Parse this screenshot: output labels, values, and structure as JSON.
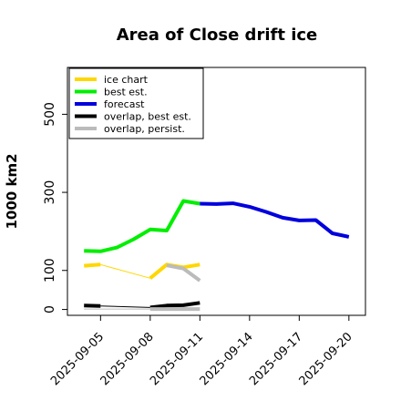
{
  "chart_data": {
    "type": "line",
    "title": "Area of Close drift ice",
    "ylabel": "1000 km2",
    "xlabel": "",
    "ylim": [
      -15,
      620
    ],
    "xlim": [
      "2025-09-03",
      "2025-09-21"
    ],
    "yticks": [
      0,
      100,
      300,
      500
    ],
    "xticks": [
      {
        "label": "2025-09-05",
        "date": "2025-09-05",
        "color": "#000000"
      },
      {
        "label": "2025-09-08",
        "date": "2025-09-08",
        "color": "#000000"
      },
      {
        "label": "2025-09-11",
        "date": "2025-09-11",
        "color": "#2e8b2e"
      },
      {
        "label": "2025-09-14",
        "date": "2025-09-14",
        "color": "#000000"
      },
      {
        "label": "2025-09-17",
        "date": "2025-09-17",
        "color": "#000000"
      },
      {
        "label": "2025-09-20",
        "date": "2025-09-20",
        "color": "#000000"
      }
    ],
    "grid": false,
    "legend": "top-left",
    "series": [
      {
        "name": "ice chart",
        "color": "#ffd700",
        "segments": [
          {
            "width": "thick",
            "points": [
              [
                "2025-09-04",
                112
              ],
              [
                "2025-09-05",
                115
              ]
            ]
          },
          {
            "width": "thin",
            "points": [
              [
                "2025-09-05",
                115
              ],
              [
                "2025-09-08",
                80
              ]
            ]
          },
          {
            "width": "thick",
            "points": [
              [
                "2025-09-08",
                80
              ],
              [
                "2025-09-09",
                115
              ],
              [
                "2025-09-10",
                108
              ],
              [
                "2025-09-11",
                115
              ]
            ]
          }
        ]
      },
      {
        "name": "best est.",
        "color": "#00ee00",
        "segments": [
          {
            "width": "thick",
            "points": [
              [
                "2025-09-04",
                150
              ],
              [
                "2025-09-05",
                149
              ],
              [
                "2025-09-06",
                159
              ],
              [
                "2025-09-07",
                180
              ],
              [
                "2025-09-08",
                205
              ],
              [
                "2025-09-09",
                202
              ],
              [
                "2025-09-10",
                278
              ],
              [
                "2025-09-11",
                271
              ]
            ]
          }
        ]
      },
      {
        "name": "forecast",
        "color": "#0000dd",
        "segments": [
          {
            "width": "thick",
            "points": [
              [
                "2025-09-11",
                271
              ],
              [
                "2025-09-12",
                270
              ],
              [
                "2025-09-13",
                272
              ],
              [
                "2025-09-14",
                263
              ],
              [
                "2025-09-15",
                250
              ],
              [
                "2025-09-16",
                235
              ],
              [
                "2025-09-17",
                228
              ],
              [
                "2025-09-18",
                229
              ],
              [
                "2025-09-19",
                195
              ],
              [
                "2025-09-20",
                186
              ]
            ]
          }
        ]
      },
      {
        "name": "overlap, best est.",
        "color": "#000000",
        "segments": [
          {
            "width": "thick",
            "points": [
              [
                "2025-09-04",
                10
              ],
              [
                "2025-09-05",
                9
              ]
            ]
          },
          {
            "width": "thin",
            "points": [
              [
                "2025-09-05",
                9
              ],
              [
                "2025-09-08",
                5
              ]
            ]
          },
          {
            "width": "thick",
            "points": [
              [
                "2025-09-08",
                5
              ],
              [
                "2025-09-09",
                10
              ],
              [
                "2025-09-10",
                11
              ],
              [
                "2025-09-11",
                17
              ]
            ]
          }
        ]
      },
      {
        "name": "overlap, persist.",
        "color": "#bbbbbb",
        "segments": [
          {
            "width": "thin",
            "points": [
              [
                "2025-09-04",
                1
              ],
              [
                "2025-09-08",
                1
              ]
            ]
          },
          {
            "width": "thick",
            "points": [
              [
                "2025-09-08",
                1
              ],
              [
                "2025-09-11",
                1
              ]
            ]
          },
          {
            "width": "thick",
            "points": [
              [
                "2025-09-09",
                113
              ],
              [
                "2025-09-10",
                105
              ],
              [
                "2025-09-11",
                74
              ]
            ]
          }
        ]
      }
    ]
  }
}
